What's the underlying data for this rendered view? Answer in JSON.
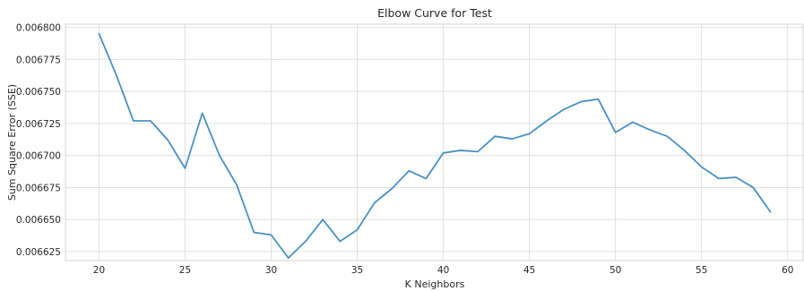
{
  "chart_data": {
    "type": "line",
    "title": "Elbow Curve for Test",
    "xlabel": "K Neighbors",
    "ylabel": "Sum Square Error (SSE)",
    "xlim": [
      18.05,
      60.95
    ],
    "ylim": [
      0.006618,
      0.0068025
    ],
    "grid": true,
    "x_ticks": [
      20,
      25,
      30,
      35,
      40,
      45,
      50,
      55,
      60
    ],
    "x_tick_labels": [
      "20",
      "25",
      "30",
      "35",
      "40",
      "45",
      "50",
      "55",
      "60"
    ],
    "y_ticks": [
      0.006625,
      0.00665,
      0.006675,
      0.0067,
      0.006725,
      0.00675,
      0.006775,
      0.0068
    ],
    "y_tick_labels": [
      "0.006625",
      "0.006650",
      "0.006675",
      "0.006700",
      "0.006725",
      "0.006750",
      "0.006775",
      "0.006800"
    ],
    "series": [
      {
        "color": "#4a90c2",
        "x": [
          20,
          21,
          22,
          23,
          24,
          25,
          26,
          27,
          28,
          29,
          30,
          31,
          32,
          33,
          34,
          35,
          36,
          37,
          38,
          39,
          40,
          41,
          42,
          43,
          44,
          45,
          46,
          47,
          48,
          49,
          50,
          51,
          52,
          53,
          54,
          55,
          56,
          57,
          58,
          59
        ],
        "values": [
          0.006795,
          0.006763,
          0.006727,
          0.006727,
          0.006712,
          0.00669,
          0.006733,
          0.0067,
          0.006677,
          0.00664,
          0.006638,
          0.00662,
          0.006633,
          0.00665,
          0.006633,
          0.006642,
          0.006663,
          0.006674,
          0.006688,
          0.006682,
          0.006702,
          0.006704,
          0.006703,
          0.006715,
          0.006713,
          0.006717,
          0.006727,
          0.006736,
          0.006742,
          0.006744,
          0.006718,
          0.006726,
          0.00672,
          0.006715,
          0.006704,
          0.006691,
          0.006682,
          0.006683,
          0.006675,
          0.006656
        ]
      }
    ]
  }
}
